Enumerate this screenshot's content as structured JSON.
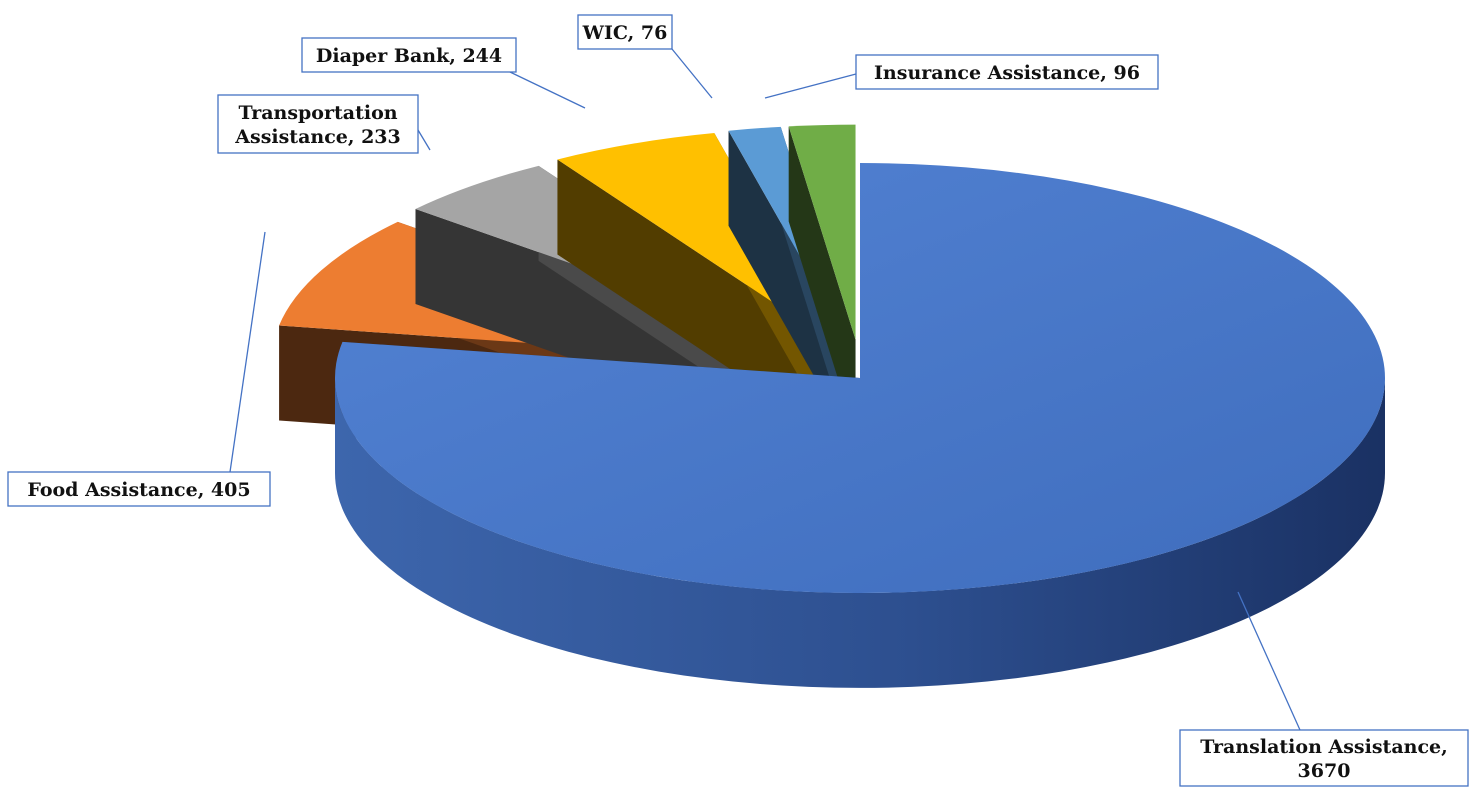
{
  "chart_data": {
    "type": "pie",
    "style": "3d-exploded",
    "title": "",
    "categories": [
      "Translation Assistance",
      "Food Assistance",
      "Transportation Assistance",
      "Diaper Bank",
      "WIC",
      "Insurance Assistance"
    ],
    "values": [
      3670,
      405,
      233,
      244,
      76,
      96
    ],
    "colors": [
      "#4472C4",
      "#ED7D31",
      "#A5A5A5",
      "#FFC000",
      "#5B9BD5",
      "#70AD47"
    ],
    "labels": [
      {
        "lines": [
          "Translation Assistance,",
          "3670"
        ]
      },
      {
        "lines": [
          "Food Assistance, 405"
        ]
      },
      {
        "lines": [
          "Transportation",
          "Assistance, 233"
        ]
      },
      {
        "lines": [
          "Diaper Bank, 244"
        ]
      },
      {
        "lines": [
          "WIC, 76"
        ]
      },
      {
        "lines": [
          "Insurance Assistance, 96"
        ]
      }
    ],
    "legend": "none",
    "data_labels": "callouts"
  }
}
